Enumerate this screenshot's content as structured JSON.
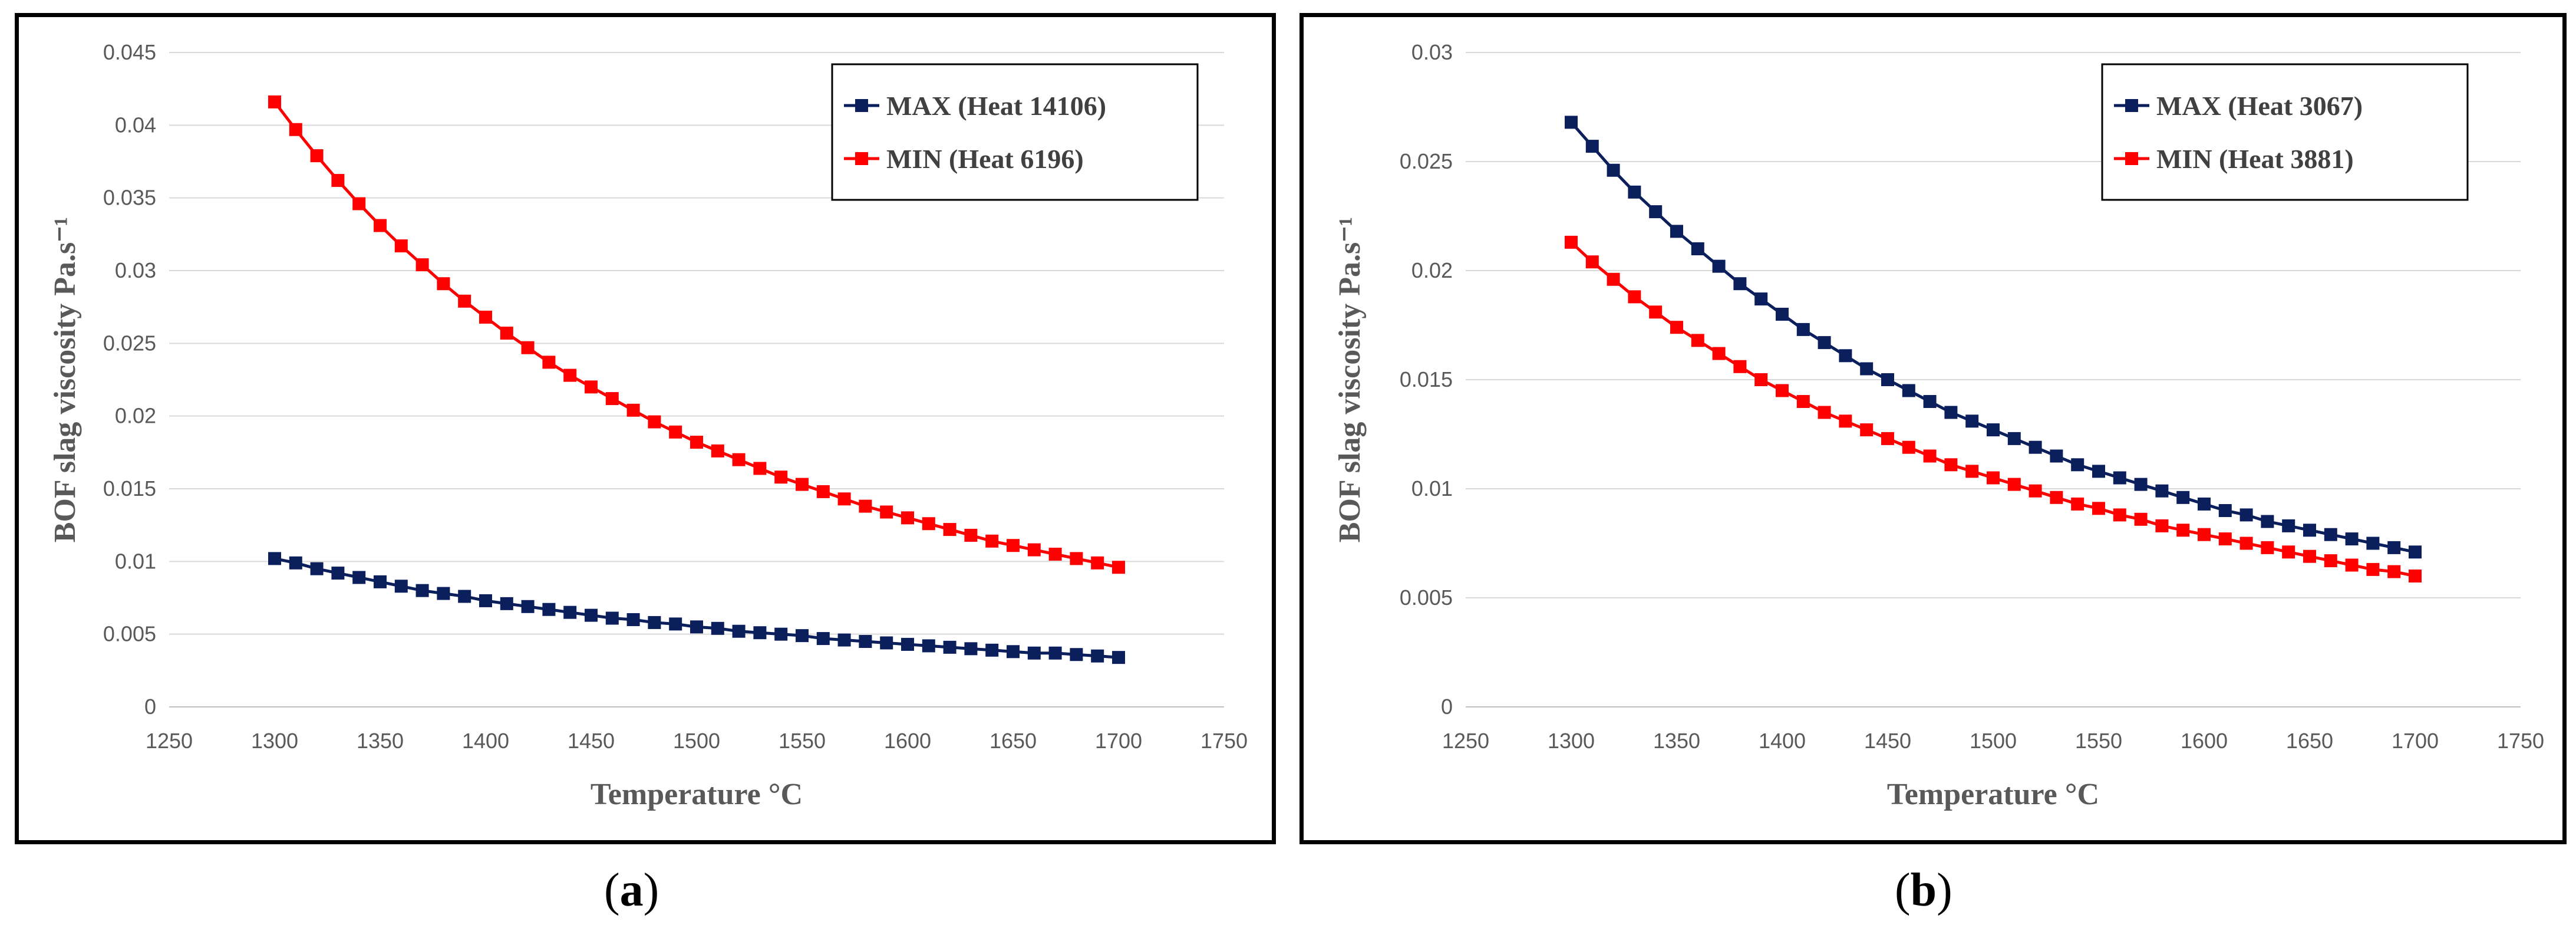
{
  "chart_data": [
    {
      "type": "line",
      "xlabel": "Temperature °C",
      "ylabel": "BOF slag viscosity Pa.s⁻¹",
      "xlim": [
        1250,
        1750
      ],
      "ylim": [
        0,
        0.045
      ],
      "xticks": [
        "1250",
        "1300",
        "1350",
        "1400",
        "1450",
        "1500",
        "1550",
        "1600",
        "1650",
        "1700",
        "1750"
      ],
      "yticks": [
        "0",
        "0.005",
        "0.01",
        "0.015",
        "0.02",
        "0.025",
        "0.03",
        "0.035",
        "0.04",
        "0.045"
      ],
      "grid": "horizontal",
      "legend_position": "top-right",
      "x": [
        1300,
        1310,
        1320,
        1330,
        1340,
        1350,
        1360,
        1370,
        1380,
        1390,
        1400,
        1410,
        1420,
        1430,
        1440,
        1450,
        1460,
        1470,
        1480,
        1490,
        1500,
        1510,
        1520,
        1530,
        1540,
        1550,
        1560,
        1570,
        1580,
        1590,
        1600,
        1610,
        1620,
        1630,
        1640,
        1650,
        1660,
        1670,
        1680,
        1690,
        1700
      ],
      "series": [
        {
          "name": "MAX (Heat 14106)",
          "color": "#0a1f5c",
          "values": [
            0.0102,
            0.0099,
            0.0095,
            0.0092,
            0.0089,
            0.0086,
            0.0083,
            0.008,
            0.0078,
            0.0076,
            0.0073,
            0.0071,
            0.0069,
            0.0067,
            0.0065,
            0.0063,
            0.0061,
            0.006,
            0.0058,
            0.0057,
            0.0055,
            0.0054,
            0.0052,
            0.0051,
            0.005,
            0.0049,
            0.0047,
            0.0046,
            0.0045,
            0.0044,
            0.0043,
            0.0042,
            0.0041,
            0.004,
            0.0039,
            0.0038,
            0.0037,
            0.0037,
            0.0036,
            0.0035,
            0.0034
          ]
        },
        {
          "name": "MIN (Heat 6196)",
          "color": "#ff0000",
          "values": [
            0.0416,
            0.0397,
            0.0379,
            0.0362,
            0.0346,
            0.0331,
            0.0317,
            0.0304,
            0.0291,
            0.0279,
            0.0268,
            0.0257,
            0.0247,
            0.0237,
            0.0228,
            0.022,
            0.0212,
            0.0204,
            0.0196,
            0.0189,
            0.0182,
            0.0176,
            0.017,
            0.0164,
            0.0158,
            0.0153,
            0.0148,
            0.0143,
            0.0138,
            0.0134,
            0.013,
            0.0126,
            0.0122,
            0.0118,
            0.0114,
            0.0111,
            0.0108,
            0.0105,
            0.0102,
            0.0099,
            0.0096
          ]
        }
      ]
    },
    {
      "type": "line",
      "xlabel": "Temperature °C",
      "ylabel": "BOF slag viscosity Pa.s⁻¹",
      "xlim": [
        1250,
        1750
      ],
      "ylim": [
        0,
        0.03
      ],
      "xticks": [
        "1250",
        "1300",
        "1350",
        "1400",
        "1450",
        "1500",
        "1550",
        "1600",
        "1650",
        "1700",
        "1750"
      ],
      "yticks": [
        "0",
        "0.005",
        "0.01",
        "0.015",
        "0.02",
        "0.025",
        "0.03"
      ],
      "grid": "horizontal",
      "legend_position": "top-right",
      "x": [
        1300,
        1310,
        1320,
        1330,
        1340,
        1350,
        1360,
        1370,
        1380,
        1390,
        1400,
        1410,
        1420,
        1430,
        1440,
        1450,
        1460,
        1470,
        1480,
        1490,
        1500,
        1510,
        1520,
        1530,
        1540,
        1550,
        1560,
        1570,
        1580,
        1590,
        1600,
        1610,
        1620,
        1630,
        1640,
        1650,
        1660,
        1670,
        1680,
        1690,
        1700
      ],
      "series": [
        {
          "name": "MAX (Heat 3067)",
          "color": "#0a1f5c",
          "values": [
            0.0268,
            0.0257,
            0.0246,
            0.0236,
            0.0227,
            0.0218,
            0.021,
            0.0202,
            0.0194,
            0.0187,
            0.018,
            0.0173,
            0.0167,
            0.0161,
            0.0155,
            0.015,
            0.0145,
            0.014,
            0.0135,
            0.0131,
            0.0127,
            0.0123,
            0.0119,
            0.0115,
            0.0111,
            0.0108,
            0.0105,
            0.0102,
            0.0099,
            0.0096,
            0.0093,
            0.009,
            0.0088,
            0.0085,
            0.0083,
            0.0081,
            0.0079,
            0.0077,
            0.0075,
            0.0073,
            0.0071
          ]
        },
        {
          "name": "MIN (Heat 3881)",
          "color": "#ff0000",
          "values": [
            0.0213,
            0.0204,
            0.0196,
            0.0188,
            0.0181,
            0.0174,
            0.0168,
            0.0162,
            0.0156,
            0.015,
            0.0145,
            0.014,
            0.0135,
            0.0131,
            0.0127,
            0.0123,
            0.0119,
            0.0115,
            0.0111,
            0.0108,
            0.0105,
            0.0102,
            0.0099,
            0.0096,
            0.0093,
            0.0091,
            0.0088,
            0.0086,
            0.0083,
            0.0081,
            0.0079,
            0.0077,
            0.0075,
            0.0073,
            0.0071,
            0.0069,
            0.0067,
            0.0065,
            0.0063,
            0.0062,
            0.006
          ]
        }
      ]
    }
  ],
  "captions": [
    "a",
    "b"
  ]
}
